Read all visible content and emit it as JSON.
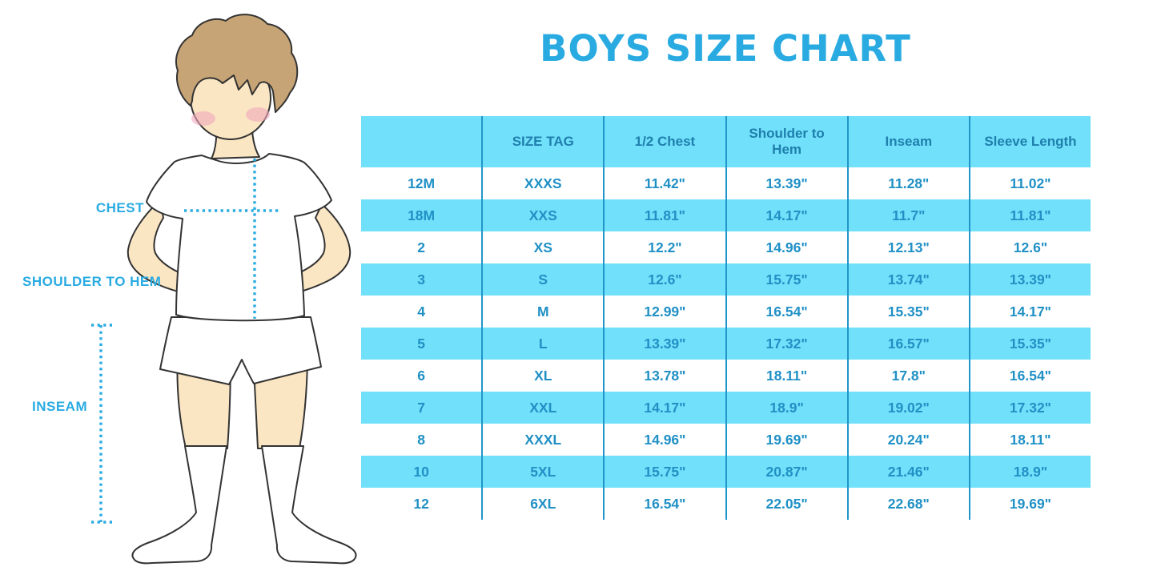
{
  "title": "BOYS SIZE CHART",
  "figure": {
    "labels": {
      "chest": "CHEST",
      "shoulder_to_hem": "SHOULDER TO HEM",
      "inseam": "INSEAM"
    }
  },
  "colors": {
    "accent": "#29ABE2",
    "row-blue": "#71E0FA",
    "divider": "#2196C8",
    "cell-text": "#2090C5",
    "header-text": "#1F7FAD",
    "outline": "#333333",
    "skin": "#FBE6C3",
    "hair": "#C7A476",
    "blush": "#F0A8BC"
  },
  "chart_data": {
    "type": "table",
    "title": "BOYS SIZE CHART",
    "columns": [
      "",
      "SIZE TAG",
      "1/2 Chest",
      "Shoulder to Hem",
      "Inseam",
      "Sleeve Length"
    ],
    "rows": [
      [
        "12M",
        "XXXS",
        "11.42\"",
        "13.39\"",
        "11.28\"",
        "11.02\""
      ],
      [
        "18M",
        "XXS",
        "11.81\"",
        "14.17\"",
        "11.7\"",
        "11.81\""
      ],
      [
        "2",
        "XS",
        "12.2\"",
        "14.96\"",
        "12.13\"",
        "12.6\""
      ],
      [
        "3",
        "S",
        "12.6\"",
        "15.75\"",
        "13.74\"",
        "13.39\""
      ],
      [
        "4",
        "M",
        "12.99\"",
        "16.54\"",
        "15.35\"",
        "14.17\""
      ],
      [
        "5",
        "L",
        "13.39\"",
        "17.32\"",
        "16.57\"",
        "15.35\""
      ],
      [
        "6",
        "XL",
        "13.78\"",
        "18.11\"",
        "17.8\"",
        "16.54\""
      ],
      [
        "7",
        "XXL",
        "14.17\"",
        "18.9\"",
        "19.02\"",
        "17.32\""
      ],
      [
        "8",
        "XXXL",
        "14.96\"",
        "19.69\"",
        "20.24\"",
        "18.11\""
      ],
      [
        "10",
        "5XL",
        "15.75\"",
        "20.87\"",
        "21.46\"",
        "18.9\""
      ],
      [
        "12",
        "6XL",
        "16.54\"",
        "22.05\"",
        "22.68\"",
        "19.69\""
      ]
    ],
    "row_striping": "white/light-blue alternating, header light-blue",
    "grid": "vertical dividers only"
  }
}
